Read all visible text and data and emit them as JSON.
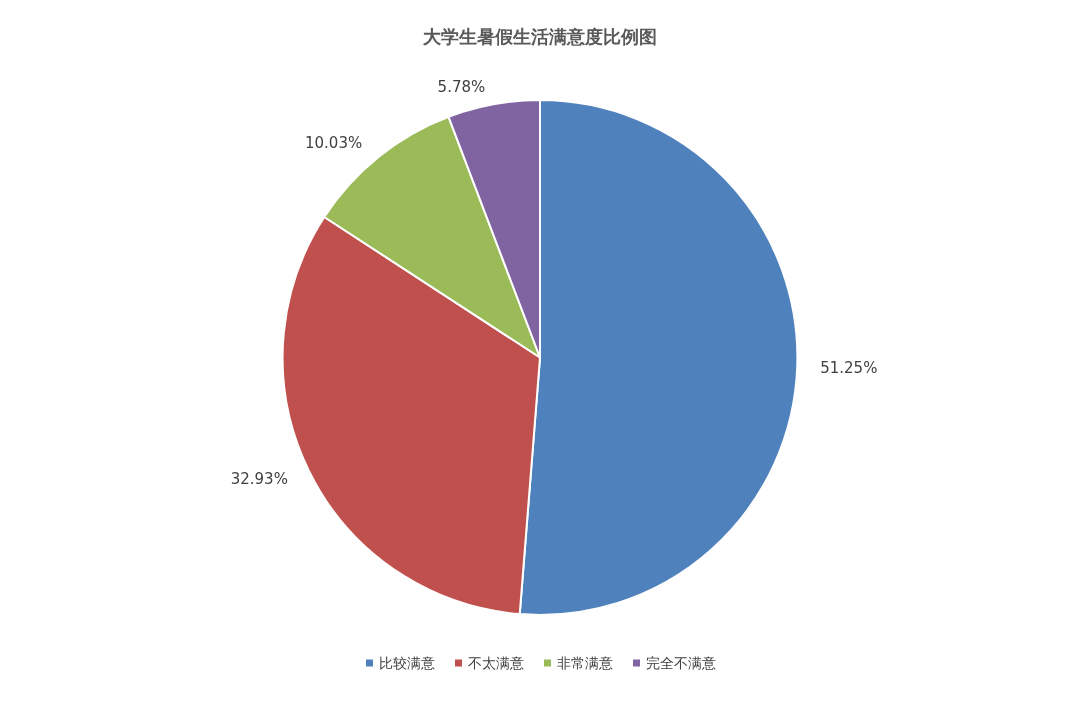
{
  "chart_data": {
    "type": "pie",
    "title": "大学生暑假生活满意度比例图",
    "categories": [
      "比较满意",
      "不太满意",
      "非常满意",
      "完全不满意"
    ],
    "values": [
      51.25,
      32.93,
      10.03,
      5.78
    ],
    "colors": [
      "#4f81bd",
      "#c0504d",
      "#9bbb59",
      "#8064a2"
    ],
    "value_labels": [
      "51.25%",
      "32.93%",
      "10.03%",
      "5.78%"
    ],
    "legend": "bottom"
  }
}
